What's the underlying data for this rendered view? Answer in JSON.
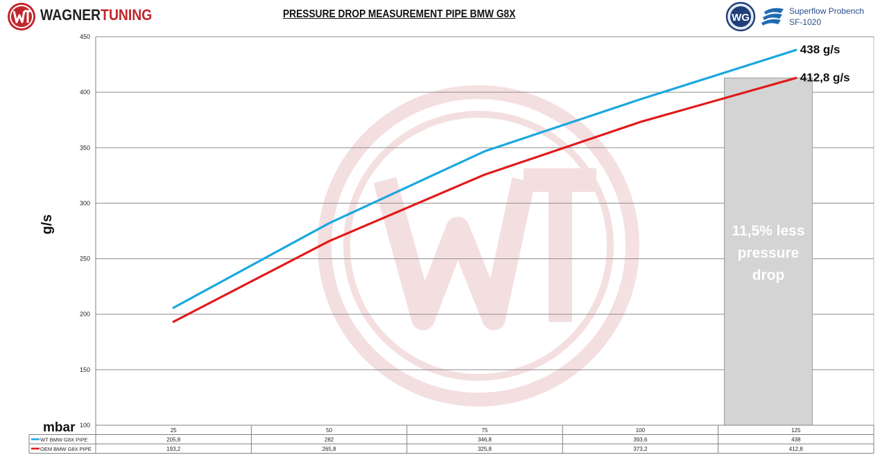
{
  "header": {
    "brand_part1": "WAGNER",
    "brand_part2": "TUNING",
    "title": "PRESSURE DROP MEASUREMENT PIPE BMW G8X",
    "instrument_line1": "Superflow Probench",
    "instrument_line2": "SF-1020"
  },
  "colors": {
    "wt_series": "#1aa7df",
    "oem_series": "#e11a1a",
    "brand_red": "#c0262c",
    "highlight_fill": "#d4d4d4"
  },
  "chart_data": {
    "type": "line",
    "title": "PRESSURE DROP MEASUREMENT PIPE BMW G8X",
    "xlabel": "mbar",
    "ylabel": "g/s",
    "ylim": [
      100,
      450
    ],
    "yticks": [
      100,
      150,
      200,
      250,
      300,
      350,
      400,
      450
    ],
    "categories": [
      "25",
      "50",
      "75",
      "100",
      "125"
    ],
    "grid": true,
    "legend": "data-table",
    "series": [
      {
        "name": "WT BMW G8X PIPE",
        "values": [
          205.8,
          282,
          346.8,
          393.6,
          438
        ],
        "labels": [
          "205,8",
          "282",
          "346,8",
          "393,6",
          "438"
        ],
        "color": "#1aa7df"
      },
      {
        "name": "OEM BMW G8X PIPE",
        "values": [
          193.2,
          265.8,
          325.8,
          373.2,
          412.8
        ],
        "labels": [
          "193,2",
          "265,8",
          "325,8",
          "373,2",
          "412,8"
        ],
        "color": "#e11a1a"
      }
    ],
    "end_labels": [
      "438 g/s",
      "412,8 g/s"
    ],
    "highlight": {
      "category": "125",
      "value": 412.8,
      "text_lines": [
        "11,5% less",
        "pressure",
        "drop"
      ]
    }
  }
}
